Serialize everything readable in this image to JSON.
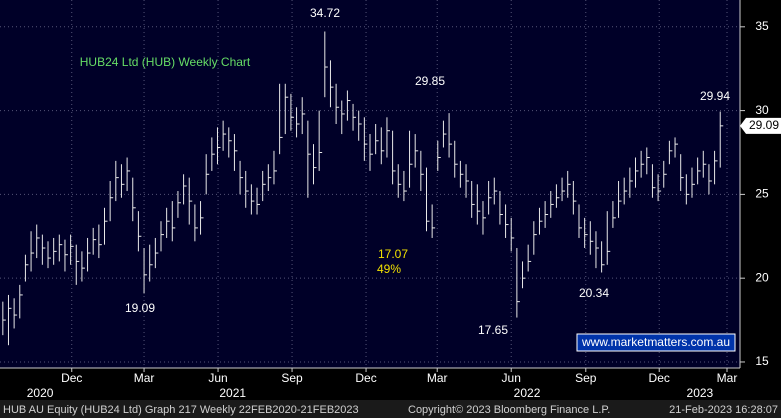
{
  "chart_data": {
    "type": "ohlc",
    "title": "HUB24 Ltd (HUB) Weekly Chart",
    "color": "#e8e8e8",
    "grid": true,
    "ylim": [
      14.64,
      36.6
    ],
    "yticks": [
      15,
      20,
      25,
      30,
      35
    ],
    "xlim": [
      -0.5,
      130.5
    ],
    "xticks": [
      {
        "value": 12.2,
        "label": "Dec"
      },
      {
        "value": 25.0,
        "label": "Mar"
      },
      {
        "value": 38.1,
        "label": "Jun"
      },
      {
        "value": 51.2,
        "label": "Sep"
      },
      {
        "value": 64.3,
        "label": "Dec"
      },
      {
        "value": 76.9,
        "label": "Mar"
      },
      {
        "value": 90.0,
        "label": "Jun"
      },
      {
        "value": 103.2,
        "label": "Sep"
      },
      {
        "value": 116.2,
        "label": "Dec"
      },
      {
        "value": 128.2,
        "label": "Mar"
      }
    ],
    "year_ticks": [
      {
        "value": 6.6,
        "label": "2020"
      },
      {
        "value": 40.7,
        "label": "2021"
      },
      {
        "value": 92.8,
        "label": "2022"
      },
      {
        "value": 123.4,
        "label": "2023"
      }
    ],
    "high": [
      18.6,
      19.0,
      18.8,
      19.6,
      21.4,
      22.8,
      23.2,
      22.6,
      22.2,
      22.4,
      22.6,
      22.3,
      22.6,
      22.0,
      21.6,
      22.4,
      23.0,
      23.2,
      24.2,
      25.8,
      27.0,
      26.8,
      27.2,
      26.0,
      24.0,
      21.8,
      22.0,
      22.4,
      23.4,
      24.2,
      24.6,
      25.2,
      26.2,
      26.0,
      24.4,
      24.6,
      27.4,
      28.4,
      29.0,
      29.4,
      29.0,
      28.6,
      27.0,
      26.4,
      25.6,
      25.4,
      26.4,
      26.8,
      27.6,
      31.6,
      31.6,
      31.0,
      30.2,
      30.8,
      29.4,
      28.0,
      30.0,
      34.72,
      33.0,
      31.6,
      30.6,
      31.2,
      30.4,
      30.0,
      29.6,
      28.6,
      29.2,
      29.0,
      29.6,
      28.8,
      26.8,
      26.4,
      28.8,
      28.6,
      27.6,
      26.6,
      24.4,
      28.2,
      29.4,
      29.85,
      28.2,
      27.0,
      26.8,
      25.8,
      25.6,
      24.6,
      25.8,
      26.0,
      25.2,
      24.4,
      23.6,
      21.8,
      21.0,
      22.0,
      23.4,
      24.2,
      24.6,
      25.2,
      25.6,
      26.0,
      26.4,
      25.8,
      24.4,
      23.6,
      23.4,
      22.8,
      22.2,
      24.0,
      24.6,
      25.8,
      26.0,
      26.6,
      27.2,
      27.6,
      27.8,
      26.8,
      26.2,
      27.0,
      28.2,
      28.4,
      27.4,
      26.2,
      26.6,
      27.2,
      27.6,
      26.8,
      27.6,
      29.94
    ],
    "low": [
      16.6,
      16.0,
      17.0,
      17.6,
      19.8,
      20.4,
      21.2,
      20.8,
      20.6,
      20.8,
      21.0,
      20.4,
      20.8,
      19.6,
      19.8,
      20.4,
      21.4,
      21.2,
      22.0,
      23.4,
      24.6,
      24.8,
      25.2,
      23.4,
      21.6,
      19.09,
      19.8,
      20.6,
      21.6,
      22.4,
      22.2,
      23.6,
      24.4,
      23.2,
      22.2,
      22.6,
      25.0,
      26.4,
      26.8,
      27.6,
      27.2,
      26.4,
      25.0,
      24.2,
      23.8,
      23.8,
      24.6,
      25.2,
      25.6,
      27.4,
      28.6,
      28.8,
      28.4,
      28.6,
      24.8,
      25.6,
      26.4,
      30.8,
      30.2,
      29.2,
      28.6,
      29.4,
      28.8,
      28.2,
      27.0,
      26.4,
      27.4,
      26.8,
      27.2,
      25.6,
      24.8,
      24.6,
      25.4,
      26.6,
      25.2,
      22.8,
      22.4,
      26.4,
      27.8,
      27.2,
      26.0,
      25.4,
      24.8,
      23.6,
      23.2,
      22.6,
      23.8,
      24.4,
      23.2,
      22.4,
      21.6,
      17.65,
      19.4,
      20.4,
      21.4,
      22.6,
      23.0,
      23.6,
      24.2,
      24.6,
      24.8,
      23.8,
      22.4,
      21.8,
      21.4,
      20.6,
      20.34,
      20.8,
      23.0,
      23.6,
      24.4,
      24.8,
      25.4,
      26.0,
      26.2,
      24.8,
      24.6,
      25.4,
      26.8,
      27.2,
      25.2,
      24.4,
      24.8,
      25.6,
      26.0,
      25.0,
      25.6,
      26.6
    ],
    "close": [
      17.5,
      18.2,
      17.8,
      19.0,
      20.8,
      21.5,
      22.4,
      21.8,
      21.2,
      21.6,
      22.0,
      21.4,
      21.9,
      21.0,
      20.6,
      21.5,
      22.3,
      22.0,
      23.4,
      24.8,
      26.0,
      25.6,
      26.4,
      24.2,
      22.5,
      20.2,
      20.8,
      21.5,
      22.6,
      23.4,
      23.0,
      24.5,
      25.5,
      24.6,
      23.0,
      23.6,
      26.2,
      27.4,
      27.8,
      28.6,
      28.2,
      27.6,
      26.0,
      25.2,
      24.6,
      24.4,
      25.6,
      26.0,
      26.4,
      28.4,
      30.8,
      29.6,
      29.2,
      29.8,
      27.4,
      26.6,
      27.5,
      32.6,
      31.4,
      30.2,
      29.8,
      30.6,
      29.6,
      29.2,
      28.0,
      27.4,
      28.2,
      27.6,
      28.8,
      26.4,
      25.6,
      25.2,
      26.8,
      27.6,
      26.2,
      23.4,
      23.0,
      27.2,
      28.6,
      28.0,
      26.8,
      26.2,
      25.8,
      24.4,
      24.0,
      23.6,
      24.8,
      25.2,
      23.8,
      23.2,
      22.4,
      18.6,
      20.0,
      21.0,
      22.6,
      23.4,
      23.8,
      24.4,
      24.8,
      25.2,
      25.6,
      24.6,
      23.0,
      22.6,
      22.2,
      21.8,
      20.8,
      21.6,
      23.6,
      24.6,
      25.2,
      25.8,
      26.4,
      26.8,
      27.2,
      25.4,
      25.2,
      26.2,
      27.6,
      28.0,
      26.0,
      25.0,
      25.6,
      26.4,
      26.8,
      25.8,
      27.0,
      29.09
    ],
    "annotations": [
      "17.07",
      "49%"
    ],
    "watermark": "www.marketmatters.com.au",
    "status": {
      "security": "HUB AU Equity (HUB24 Ltd) Graph 217  Weekly 22FEB2020-21FEB2023",
      "copyright": "Copyright© 2023 Bloomberg Finance L.P.",
      "timestamp": "21-Feb-2023 16:28:07"
    }
  }
}
